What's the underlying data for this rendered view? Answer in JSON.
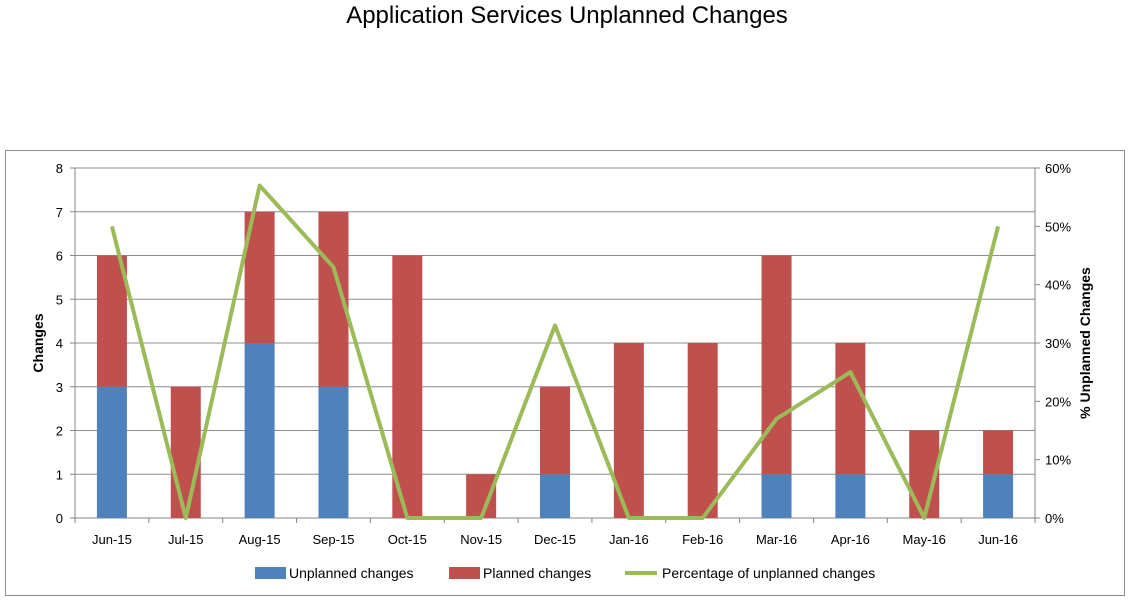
{
  "chart_data": {
    "type": "bar",
    "title": "Application Services Unplanned Changes",
    "categories": [
      "Jun-15",
      "Jul-15",
      "Aug-15",
      "Sep-15",
      "Oct-15",
      "Nov-15",
      "Dec-15",
      "Jan-16",
      "Feb-16",
      "Mar-16",
      "Apr-16",
      "May-16",
      "Jun-16"
    ],
    "series": [
      {
        "name": "Unplanned changes",
        "type": "bar",
        "stacked": true,
        "color": "#4f81bd",
        "values": [
          3,
          0,
          4,
          3,
          0,
          0,
          1,
          0,
          0,
          1,
          1,
          0,
          1
        ]
      },
      {
        "name": "Planned changes",
        "type": "bar",
        "stacked": true,
        "color": "#c0504d",
        "values": [
          3,
          3,
          3,
          4,
          6,
          1,
          2,
          4,
          4,
          5,
          3,
          2,
          1
        ]
      },
      {
        "name": "Percentage of unplanned changes",
        "type": "line",
        "axis": "secondary",
        "color": "#9bbb59",
        "values": [
          50,
          0,
          57,
          43,
          0,
          0,
          33,
          0,
          0,
          17,
          25,
          0,
          50
        ]
      }
    ],
    "ylabel": "Changes",
    "ylim": [
      0,
      8
    ],
    "yticks": [
      "0",
      "1",
      "2",
      "3",
      "4",
      "5",
      "6",
      "7",
      "8"
    ],
    "y2label": "% Unplanned Changes",
    "y2lim": [
      0,
      60
    ],
    "y2ticks": [
      "0%",
      "10%",
      "20%",
      "30%",
      "40%",
      "50%",
      "60%"
    ],
    "grid": true,
    "legend_position": "bottom"
  }
}
